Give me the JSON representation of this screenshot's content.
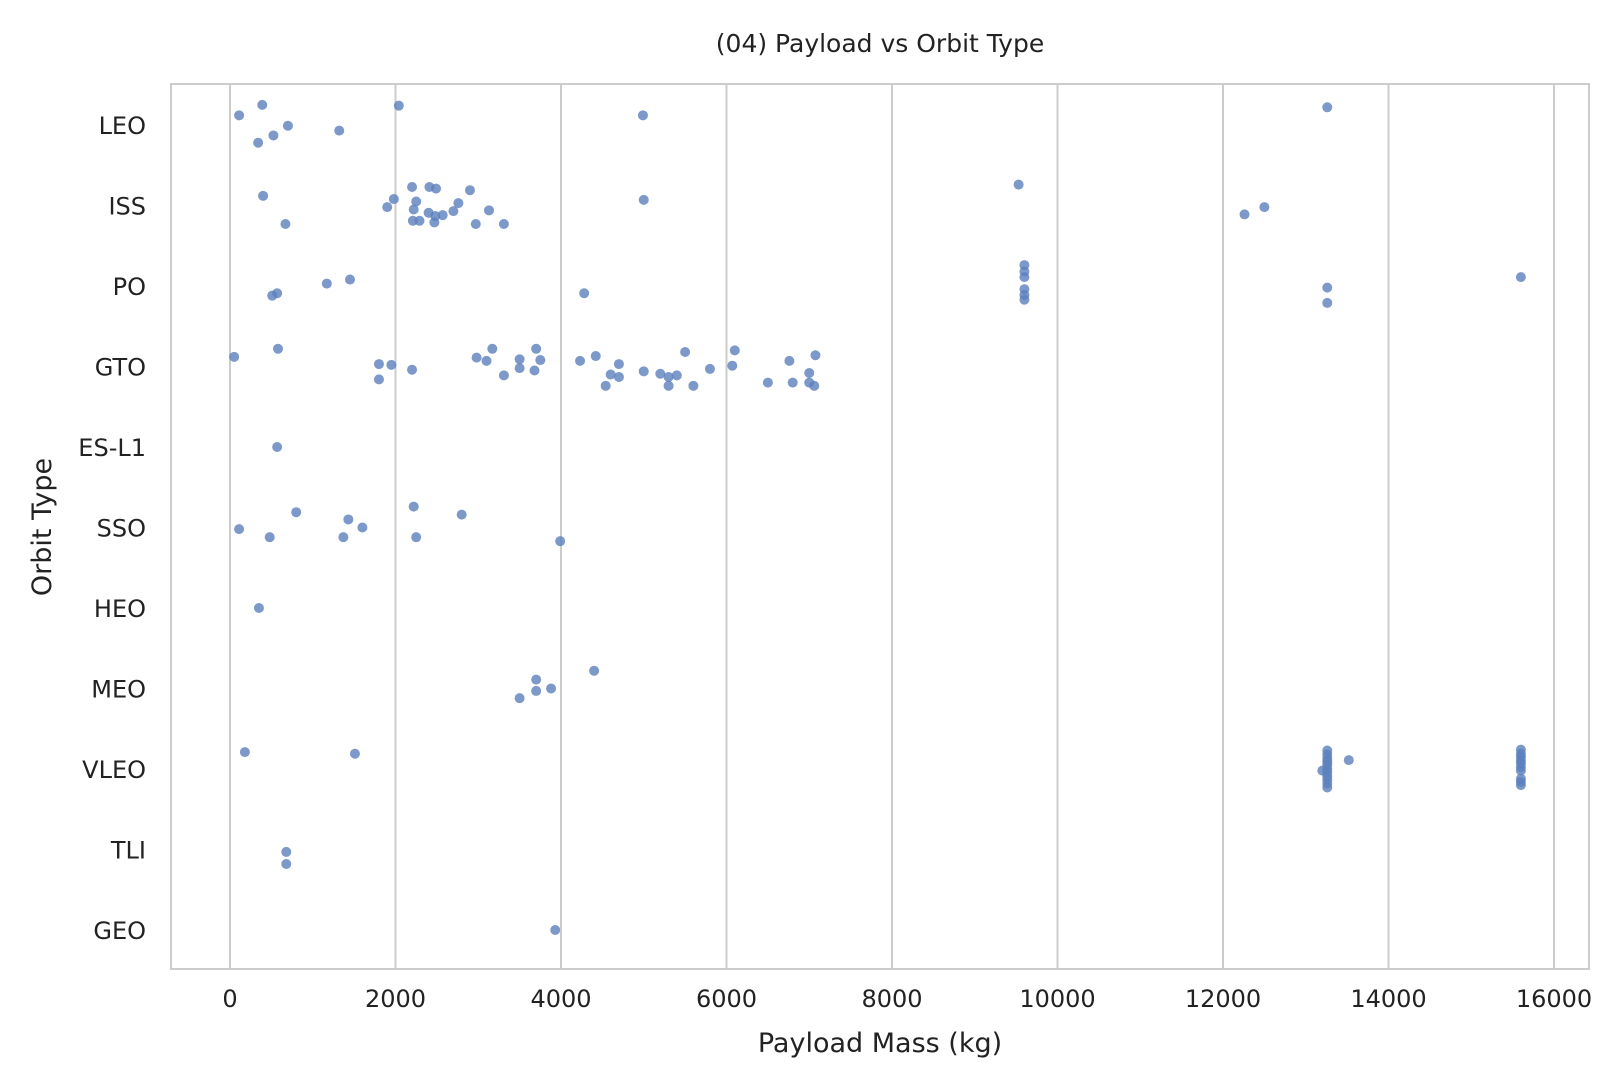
{
  "chart_data": {
    "type": "scatter",
    "title": "(04) Payload vs Orbit Type",
    "xlabel": "Payload Mass (kg)",
    "ylabel": "Orbit Type",
    "xlim": [
      -700,
      16400
    ],
    "xticks": [
      "0",
      "2000",
      "4000",
      "6000",
      "8000",
      "10000",
      "12000",
      "14000",
      "16000"
    ],
    "categories": [
      "LEO",
      "ISS",
      "PO",
      "GTO",
      "ES-L1",
      "SSO",
      "HEO",
      "MEO",
      "VLEO",
      "TLI",
      "GEO"
    ],
    "grid": "vertical",
    "marker_color": "#5b7fbd",
    "points": [
      {
        "x": 110,
        "y": "LEO",
        "j": -0.12
      },
      {
        "x": 390,
        "y": "LEO",
        "j": -0.25
      },
      {
        "x": 340,
        "y": "LEO",
        "j": 0.22
      },
      {
        "x": 525,
        "y": "LEO",
        "j": 0.13
      },
      {
        "x": 700,
        "y": "LEO",
        "j": 0.01
      },
      {
        "x": 1320,
        "y": "LEO",
        "j": 0.07
      },
      {
        "x": 2040,
        "y": "LEO",
        "j": -0.24
      },
      {
        "x": 4990,
        "y": "LEO",
        "j": -0.12
      },
      {
        "x": 13260,
        "y": "LEO",
        "j": -0.22
      },
      {
        "x": 400,
        "y": "ISS",
        "j": -0.12
      },
      {
        "x": 670,
        "y": "ISS",
        "j": 0.23
      },
      {
        "x": 1900,
        "y": "ISS",
        "j": 0.02
      },
      {
        "x": 1980,
        "y": "ISS",
        "j": -0.08
      },
      {
        "x": 2200,
        "y": "ISS",
        "j": -0.23
      },
      {
        "x": 2220,
        "y": "ISS",
        "j": 0.05
      },
      {
        "x": 2250,
        "y": "ISS",
        "j": -0.05
      },
      {
        "x": 2210,
        "y": "ISS",
        "j": 0.19
      },
      {
        "x": 2290,
        "y": "ISS",
        "j": 0.19
      },
      {
        "x": 2400,
        "y": "ISS",
        "j": 0.09
      },
      {
        "x": 2410,
        "y": "ISS",
        "j": -0.23
      },
      {
        "x": 2470,
        "y": "ISS",
        "j": 0.21
      },
      {
        "x": 2480,
        "y": "ISS",
        "j": 0.13
      },
      {
        "x": 2490,
        "y": "ISS",
        "j": -0.21
      },
      {
        "x": 2570,
        "y": "ISS",
        "j": 0.12
      },
      {
        "x": 2700,
        "y": "ISS",
        "j": 0.07
      },
      {
        "x": 2760,
        "y": "ISS",
        "j": -0.03
      },
      {
        "x": 2900,
        "y": "ISS",
        "j": -0.19
      },
      {
        "x": 2970,
        "y": "ISS",
        "j": 0.23
      },
      {
        "x": 3130,
        "y": "ISS",
        "j": 0.06
      },
      {
        "x": 3310,
        "y": "ISS",
        "j": 0.23
      },
      {
        "x": 5000,
        "y": "ISS",
        "j": -0.07
      },
      {
        "x": 9530,
        "y": "ISS",
        "j": -0.26
      },
      {
        "x": 12260,
        "y": "ISS",
        "j": 0.11
      },
      {
        "x": 12500,
        "y": "ISS",
        "j": 0.02
      },
      {
        "x": 510,
        "y": "PO",
        "j": 0.12
      },
      {
        "x": 570,
        "y": "PO",
        "j": 0.09
      },
      {
        "x": 1170,
        "y": "PO",
        "j": -0.03
      },
      {
        "x": 1450,
        "y": "PO",
        "j": -0.08
      },
      {
        "x": 4280,
        "y": "PO",
        "j": 0.09
      },
      {
        "x": 9600,
        "y": "PO",
        "j": -0.26
      },
      {
        "x": 9600,
        "y": "PO",
        "j": -0.18
      },
      {
        "x": 9600,
        "y": "PO",
        "j": -0.11
      },
      {
        "x": 9600,
        "y": "PO",
        "j": 0.04
      },
      {
        "x": 9600,
        "y": "PO",
        "j": 0.11
      },
      {
        "x": 9600,
        "y": "PO",
        "j": 0.17
      },
      {
        "x": 13260,
        "y": "PO",
        "j": 0.02
      },
      {
        "x": 13260,
        "y": "PO",
        "j": 0.21
      },
      {
        "x": 15600,
        "y": "PO",
        "j": -0.11
      },
      {
        "x": 50,
        "y": "GTO",
        "j": -0.12
      },
      {
        "x": 580,
        "y": "GTO",
        "j": -0.22
      },
      {
        "x": 1800,
        "y": "GTO",
        "j": -0.03
      },
      {
        "x": 1800,
        "y": "GTO",
        "j": 0.16
      },
      {
        "x": 1950,
        "y": "GTO",
        "j": -0.02
      },
      {
        "x": 2200,
        "y": "GTO",
        "j": 0.04
      },
      {
        "x": 2980,
        "y": "GTO",
        "j": -0.11
      },
      {
        "x": 3100,
        "y": "GTO",
        "j": -0.07
      },
      {
        "x": 3170,
        "y": "GTO",
        "j": -0.22
      },
      {
        "x": 3310,
        "y": "GTO",
        "j": 0.11
      },
      {
        "x": 3500,
        "y": "GTO",
        "j": 0.02
      },
      {
        "x": 3500,
        "y": "GTO",
        "j": -0.09
      },
      {
        "x": 3680,
        "y": "GTO",
        "j": 0.05
      },
      {
        "x": 3700,
        "y": "GTO",
        "j": -0.22
      },
      {
        "x": 3750,
        "y": "GTO",
        "j": -0.08
      },
      {
        "x": 4230,
        "y": "GTO",
        "j": -0.07
      },
      {
        "x": 4420,
        "y": "GTO",
        "j": -0.13
      },
      {
        "x": 4540,
        "y": "GTO",
        "j": 0.24
      },
      {
        "x": 4600,
        "y": "GTO",
        "j": 0.1
      },
      {
        "x": 4700,
        "y": "GTO",
        "j": -0.03
      },
      {
        "x": 4700,
        "y": "GTO",
        "j": 0.13
      },
      {
        "x": 5000,
        "y": "GTO",
        "j": 0.06
      },
      {
        "x": 5200,
        "y": "GTO",
        "j": 0.09
      },
      {
        "x": 5300,
        "y": "GTO",
        "j": 0.13
      },
      {
        "x": 5300,
        "y": "GTO",
        "j": 0.24
      },
      {
        "x": 5400,
        "y": "GTO",
        "j": 0.11
      },
      {
        "x": 5500,
        "y": "GTO",
        "j": -0.18
      },
      {
        "x": 5600,
        "y": "GTO",
        "j": 0.24
      },
      {
        "x": 5800,
        "y": "GTO",
        "j": 0.03
      },
      {
        "x": 6070,
        "y": "GTO",
        "j": -0.01
      },
      {
        "x": 6100,
        "y": "GTO",
        "j": -0.2
      },
      {
        "x": 6500,
        "y": "GTO",
        "j": 0.2
      },
      {
        "x": 6760,
        "y": "GTO",
        "j": -0.07
      },
      {
        "x": 6800,
        "y": "GTO",
        "j": 0.2
      },
      {
        "x": 7000,
        "y": "GTO",
        "j": 0.08
      },
      {
        "x": 7000,
        "y": "GTO",
        "j": 0.2
      },
      {
        "x": 7060,
        "y": "GTO",
        "j": 0.24
      },
      {
        "x": 7075,
        "y": "GTO",
        "j": -0.14
      },
      {
        "x": 570,
        "y": "ES-L1",
        "j": 0.0
      },
      {
        "x": 110,
        "y": "SSO",
        "j": 0.02
      },
      {
        "x": 480,
        "y": "SSO",
        "j": 0.12
      },
      {
        "x": 800,
        "y": "SSO",
        "j": -0.19
      },
      {
        "x": 1370,
        "y": "SSO",
        "j": 0.12
      },
      {
        "x": 1430,
        "y": "SSO",
        "j": -0.1
      },
      {
        "x": 1600,
        "y": "SSO",
        "j": 0.0
      },
      {
        "x": 2220,
        "y": "SSO",
        "j": -0.26
      },
      {
        "x": 2250,
        "y": "SSO",
        "j": 0.12
      },
      {
        "x": 2800,
        "y": "SSO",
        "j": -0.16
      },
      {
        "x": 3990,
        "y": "SSO",
        "j": 0.17
      },
      {
        "x": 350,
        "y": "HEO",
        "j": 0.0
      },
      {
        "x": 3500,
        "y": "MEO",
        "j": 0.12
      },
      {
        "x": 3700,
        "y": "MEO",
        "j": -0.11
      },
      {
        "x": 3700,
        "y": "MEO",
        "j": 0.03
      },
      {
        "x": 3880,
        "y": "MEO",
        "j": 0.0
      },
      {
        "x": 4400,
        "y": "MEO",
        "j": -0.22
      },
      {
        "x": 180,
        "y": "VLEO",
        "j": -0.21
      },
      {
        "x": 1510,
        "y": "VLEO",
        "j": -0.19
      },
      {
        "x": 13200,
        "y": "VLEO",
        "j": 0.02
      },
      {
        "x": 13260,
        "y": "VLEO",
        "j": -0.23
      },
      {
        "x": 13260,
        "y": "VLEO",
        "j": -0.18
      },
      {
        "x": 13260,
        "y": "VLEO",
        "j": -0.13
      },
      {
        "x": 13260,
        "y": "VLEO",
        "j": -0.09
      },
      {
        "x": 13260,
        "y": "VLEO",
        "j": -0.05
      },
      {
        "x": 13260,
        "y": "VLEO",
        "j": 0.0
      },
      {
        "x": 13260,
        "y": "VLEO",
        "j": 0.04
      },
      {
        "x": 13260,
        "y": "VLEO",
        "j": 0.09
      },
      {
        "x": 13260,
        "y": "VLEO",
        "j": 0.13
      },
      {
        "x": 13260,
        "y": "VLEO",
        "j": 0.18
      },
      {
        "x": 13260,
        "y": "VLEO",
        "j": 0.23
      },
      {
        "x": 13520,
        "y": "VLEO",
        "j": -0.11
      },
      {
        "x": 15600,
        "y": "VLEO",
        "j": -0.24
      },
      {
        "x": 15600,
        "y": "VLEO",
        "j": -0.19
      },
      {
        "x": 15600,
        "y": "VLEO",
        "j": -0.15
      },
      {
        "x": 15600,
        "y": "VLEO",
        "j": -0.11
      },
      {
        "x": 15600,
        "y": "VLEO",
        "j": -0.07
      },
      {
        "x": 15600,
        "y": "VLEO",
        "j": -0.02
      },
      {
        "x": 15600,
        "y": "VLEO",
        "j": 0.02
      },
      {
        "x": 15600,
        "y": "VLEO",
        "j": 0.12
      },
      {
        "x": 15600,
        "y": "VLEO",
        "j": 0.16
      },
      {
        "x": 15600,
        "y": "VLEO",
        "j": 0.2
      },
      {
        "x": 680,
        "y": "TLI",
        "j": 0.03
      },
      {
        "x": 680,
        "y": "TLI",
        "j": 0.18
      },
      {
        "x": 3930,
        "y": "GEO",
        "j": 0.0
      }
    ]
  }
}
